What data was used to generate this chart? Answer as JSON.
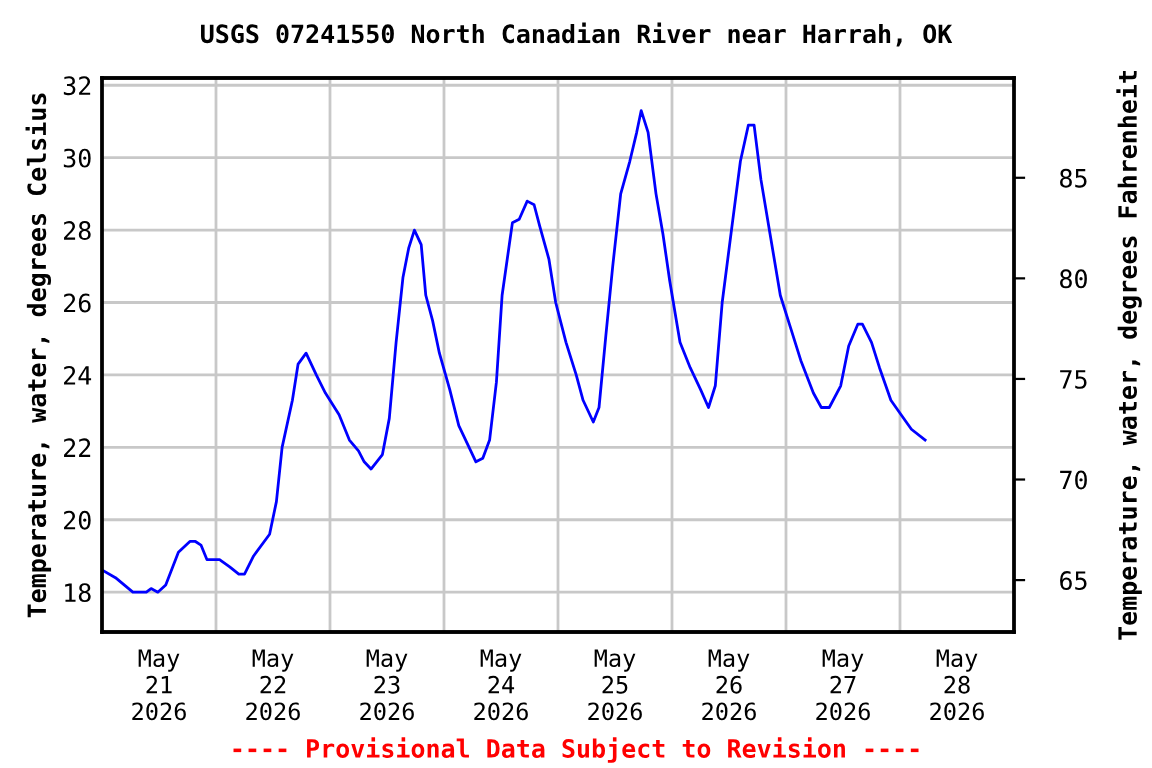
{
  "chart_data": {
    "type": "line",
    "title": "USGS 07241550 North Canadian River near Harrah, OK",
    "ylabel": "Temperature, water, degrees Celsius",
    "y2label": "Temperature, water, degrees Fahrenheit",
    "annotations": [
      "---- Provisional Data Subject to Revision ----"
    ],
    "series": [
      {
        "color": "#0000ff",
        "x": [
          "2026-05-21T00:10",
          "2026-05-21T02:50",
          "2026-05-21T06:30",
          "2026-05-21T09:20",
          "2026-05-21T10:20",
          "2026-05-21T11:45",
          "2026-05-21T13:25",
          "2026-05-21T16:05",
          "2026-05-21T18:30",
          "2026-05-21T19:40",
          "2026-05-21T20:50",
          "2026-05-21T22:05",
          "2026-05-22T00:45",
          "2026-05-22T02:53",
          "2026-05-22T04:48",
          "2026-05-22T06:00",
          "2026-05-22T07:55",
          "2026-05-22T11:17",
          "2026-05-22T12:43",
          "2026-05-22T13:55",
          "2026-05-22T16:05",
          "2026-05-22T17:17",
          "2026-05-22T18:58",
          "2026-05-22T21:07",
          "2026-05-22T23:02",
          "2026-05-23T01:55",
          "2026-05-23T04:05",
          "2026-05-23T06:00",
          "2026-05-23T07:12",
          "2026-05-23T08:38",
          "2026-05-23T11:02",
          "2026-05-23T12:29",
          "2026-05-23T13:55",
          "2026-05-23T15:22",
          "2026-05-23T16:34",
          "2026-05-23T17:46",
          "2026-05-23T19:12",
          "2026-05-23T20:10",
          "2026-05-23T21:36",
          "2026-05-23T23:02",
          "2026-05-24T01:12",
          "2026-05-24T03:07",
          "2026-05-24T05:17",
          "2026-05-24T06:43",
          "2026-05-24T08:10",
          "2026-05-24T09:36",
          "2026-05-24T11:02",
          "2026-05-24T12:14",
          "2026-05-24T14:24",
          "2026-05-24T15:50",
          "2026-05-24T17:31",
          "2026-05-24T18:58",
          "2026-05-24T20:10",
          "2026-05-24T22:05",
          "2026-05-24T23:31",
          "2026-05-25T01:41",
          "2026-05-25T03:50",
          "2026-05-25T05:17",
          "2026-05-25T07:26",
          "2026-05-25T08:38",
          "2026-05-25T10:05",
          "2026-05-25T11:31",
          "2026-05-25T13:12",
          "2026-05-25T15:07",
          "2026-05-25T16:34",
          "2026-05-25T17:31",
          "2026-05-25T18:58",
          "2026-05-25T20:38",
          "2026-05-25T22:05",
          "2026-05-25T23:31",
          "2026-05-26T01:41",
          "2026-05-26T03:50",
          "2026-05-26T06:00",
          "2026-05-26T07:41",
          "2026-05-26T09:07",
          "2026-05-26T10:34",
          "2026-05-26T12:43",
          "2026-05-26T14:24",
          "2026-05-26T16:05",
          "2026-05-26T17:17",
          "2026-05-26T18:43",
          "2026-05-26T20:38",
          "2026-05-26T22:48",
          "2026-05-27T00:58",
          "2026-05-27T03:07",
          "2026-05-27T05:46",
          "2026-05-27T07:26",
          "2026-05-27T09:07",
          "2026-05-27T11:31",
          "2026-05-27T13:12",
          "2026-05-27T15:07",
          "2026-05-27T16:05",
          "2026-05-27T18:00",
          "2026-05-27T19:41",
          "2026-05-27T22:05",
          "2026-05-28T00:14",
          "2026-05-28T02:24",
          "2026-05-28T05:17"
        ],
        "values": [
          18.6,
          18.4,
          18.0,
          18.0,
          18.1,
          18.0,
          18.2,
          19.1,
          19.4,
          19.4,
          19.3,
          18.9,
          18.9,
          18.7,
          18.5,
          18.5,
          19.0,
          19.6,
          20.5,
          22.0,
          23.3,
          24.3,
          24.6,
          24.0,
          23.5,
          22.9,
          22.2,
          21.9,
          21.6,
          21.4,
          21.8,
          22.8,
          24.9,
          26.7,
          27.5,
          28.0,
          27.6,
          26.2,
          25.5,
          24.6,
          23.6,
          22.6,
          22.0,
          21.6,
          21.7,
          22.2,
          23.8,
          26.2,
          28.2,
          28.3,
          28.8,
          28.7,
          28.1,
          27.2,
          26.0,
          24.9,
          24.0,
          23.3,
          22.7,
          23.1,
          25.1,
          27.0,
          29.0,
          29.9,
          30.7,
          31.3,
          30.7,
          29.0,
          27.9,
          26.6,
          24.9,
          24.2,
          23.6,
          23.1,
          23.7,
          26.0,
          28.2,
          29.9,
          30.9,
          30.9,
          29.4,
          27.9,
          26.2,
          25.3,
          24.4,
          23.5,
          23.1,
          23.1,
          23.7,
          24.8,
          25.4,
          25.4,
          24.9,
          24.2,
          23.3,
          22.9,
          22.5,
          22.2
        ]
      }
    ],
    "xlim": [
      "2026-05-21",
      "2026-05-29"
    ],
    "xticks": [
      {
        "value": "2026-05-21T12:00",
        "label": "May\n21\n2026"
      },
      {
        "value": "2026-05-22T12:00",
        "label": "May\n22\n2026"
      },
      {
        "value": "2026-05-23T12:00",
        "label": "May\n23\n2026"
      },
      {
        "value": "2026-05-24T12:00",
        "label": "May\n24\n2026"
      },
      {
        "value": "2026-05-25T12:00",
        "label": "May\n25\n2026"
      },
      {
        "value": "2026-05-26T12:00",
        "label": "May\n26\n2026"
      },
      {
        "value": "2026-05-27T12:00",
        "label": "May\n27\n2026"
      },
      {
        "value": "2026-05-28T12:00",
        "label": "May\n28\n2026"
      },
      {
        "value": "2026-05-22",
        "label": null
      },
      {
        "value": "2026-05-23",
        "label": null
      },
      {
        "value": "2026-05-24",
        "label": null
      },
      {
        "value": "2026-05-25",
        "label": null
      },
      {
        "value": "2026-05-26",
        "label": null
      },
      {
        "value": "2026-05-27",
        "label": null
      },
      {
        "value": "2026-05-28",
        "label": null
      }
    ],
    "ylim": [
      16.9,
      32.2
    ],
    "yticks": [
      18,
      20,
      22,
      24,
      26,
      28,
      30,
      32
    ],
    "y2lim": [
      62.42,
      89.96
    ],
    "y2ticks": [
      65,
      70,
      75,
      80,
      85
    ],
    "grid": true,
    "legend": false,
    "marker": "none",
    "line_style": "solid"
  }
}
